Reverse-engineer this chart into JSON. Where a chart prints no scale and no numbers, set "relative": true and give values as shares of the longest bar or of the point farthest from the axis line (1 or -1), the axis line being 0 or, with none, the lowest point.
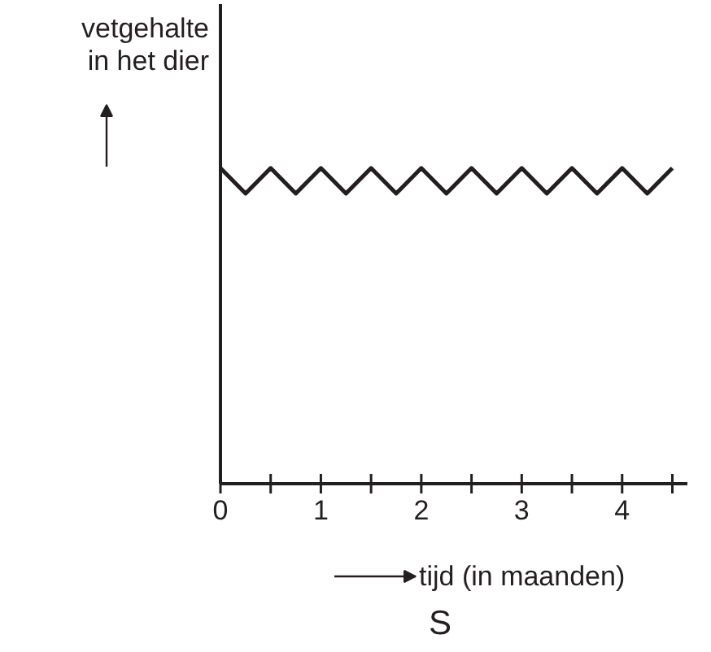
{
  "chart_data": {
    "type": "line",
    "relative": true,
    "ylabel": "vetgehalte\nin het dier",
    "xlabel": "tijd (in maanden)",
    "annotations": [
      "S"
    ],
    "x": [
      0,
      0.25,
      0.5,
      0.75,
      1,
      1.25,
      1.5,
      1.75,
      2,
      2.25,
      2.5,
      2.75,
      3,
      3.25,
      3.5,
      3.75,
      4,
      4.25,
      4.5
    ],
    "series": [
      {
        "color": "#231f20",
        "values": [
          1,
          0.92,
          1,
          0.92,
          1,
          0.92,
          1,
          0.92,
          1,
          0.92,
          1,
          0.92,
          1,
          0.92,
          1,
          0.92,
          1,
          0.92,
          1
        ]
      }
    ],
    "xlim": [
      0,
      4.65
    ],
    "xticks": [
      0,
      {
        "value": 0.5,
        "label": null
      },
      1,
      {
        "value": 1.5,
        "label": null
      },
      2,
      {
        "value": 2.5,
        "label": null
      },
      3,
      {
        "value": 3.5,
        "label": null
      },
      4,
      {
        "value": 4.5,
        "label": null
      }
    ],
    "grid": false,
    "marker": "none",
    "line_style": "solid"
  }
}
